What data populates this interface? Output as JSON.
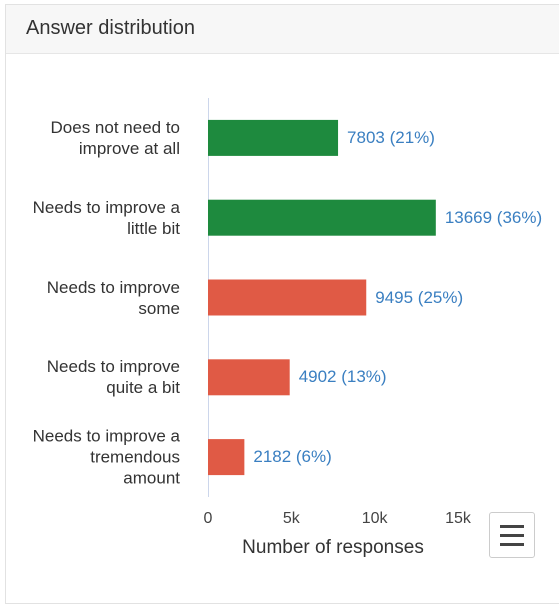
{
  "header": {
    "title": "Answer distribution"
  },
  "chart_data": {
    "type": "bar",
    "orientation": "horizontal",
    "categories": [
      "Does not need to improve at all",
      "Needs to improve a little bit",
      "Needs to improve some",
      "Needs to improve quite a bit",
      "Needs to improve a tremendous amount"
    ],
    "values": [
      7803,
      13669,
      9495,
      4902,
      2182
    ],
    "value_labels": [
      "7803 (21%)",
      "13669 (36%)",
      "9495 (25%)",
      "4902 (13%)",
      "2182 (6%)"
    ],
    "colors": [
      "#1e8a3e",
      "#1e8a3e",
      "#e05a45",
      "#e05a45",
      "#e05a45"
    ],
    "xlabel": "Number of responses",
    "xlim": [
      0,
      15000
    ],
    "xticks": [
      0,
      {
        "value": 5000,
        "label": "5k"
      },
      {
        "value": 10000,
        "label": "10k"
      },
      {
        "value": 15000,
        "label": "15k"
      }
    ]
  }
}
